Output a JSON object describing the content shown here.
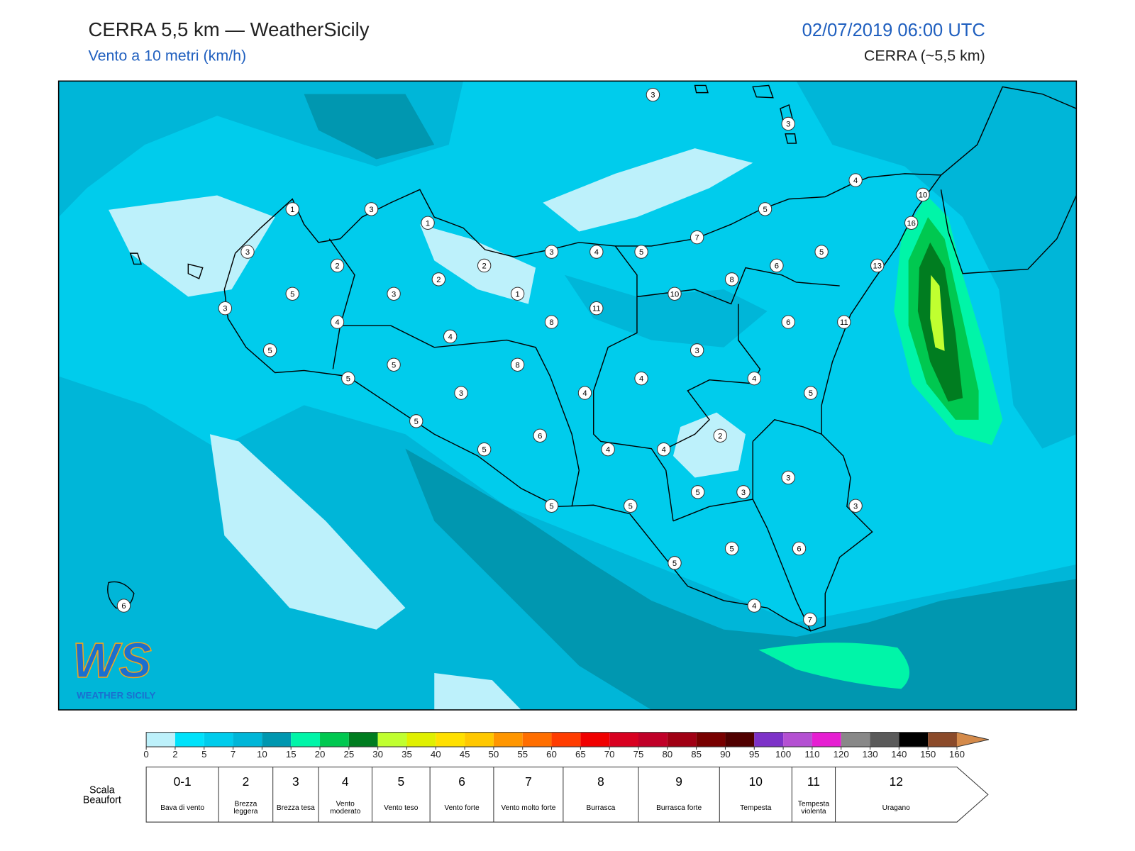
{
  "header": {
    "title": "CERRA 5,5 km — WeatherSicily",
    "subtitle": "Vento a 10 metri (km/h)",
    "datetime": "02/07/2019 06:00 UTC",
    "model": "CERRA (~5,5 km)"
  },
  "logo": {
    "mark": "WS",
    "text": "WEATHER SICILY"
  },
  "map": {
    "stations": [
      3,
      3,
      4,
      10,
      16,
      13,
      11,
      5,
      7,
      5,
      4,
      3,
      5,
      6,
      8,
      10,
      11,
      6,
      8,
      1,
      2,
      2,
      1,
      3,
      3,
      2,
      1,
      3,
      5,
      3,
      4,
      5,
      4,
      5,
      8,
      5,
      3,
      5,
      6,
      5,
      4,
      4,
      3,
      4,
      5,
      2,
      4,
      4,
      5,
      3,
      3,
      3,
      5,
      5,
      5,
      6,
      5,
      4,
      7,
      6
    ]
  },
  "colorbar": {
    "ticks": [
      0,
      2,
      5,
      7,
      10,
      15,
      20,
      25,
      30,
      35,
      40,
      45,
      50,
      55,
      60,
      65,
      70,
      75,
      80,
      85,
      90,
      95,
      100,
      110,
      120,
      130,
      140,
      150,
      160
    ],
    "colors": [
      "#bdf1fb",
      "#00e2fb",
      "#00ccec",
      "#00b6d8",
      "#0097b0",
      "#00f5a8",
      "#00c850",
      "#007d20",
      "#c0ff30",
      "#e0f000",
      "#ffe000",
      "#ffc800",
      "#ff9600",
      "#ff6e00",
      "#ff3c00",
      "#f00000",
      "#d80020",
      "#c00028",
      "#a00014",
      "#780000",
      "#500000",
      "#7d32c8",
      "#b450d2",
      "#e61ed2",
      "#888888",
      "#5a5a5a",
      "#000000",
      "#8b4a2a"
    ],
    "extend_color": "#d48a4a"
  },
  "beaufort": {
    "title": "Scala Beaufort",
    "classes": [
      {
        "number": "0-1",
        "label": "Bava di vento"
      },
      {
        "number": "2",
        "label": "Brezza leggera"
      },
      {
        "number": "3",
        "label": "Brezza tesa"
      },
      {
        "number": "4",
        "label": "Vento moderato"
      },
      {
        "number": "5",
        "label": "Vento teso"
      },
      {
        "number": "6",
        "label": "Vento forte"
      },
      {
        "number": "7",
        "label": "Vento molto forte"
      },
      {
        "number": "8",
        "label": "Burrasca"
      },
      {
        "number": "9",
        "label": "Burrasca forte"
      },
      {
        "number": "10",
        "label": "Tempesta"
      },
      {
        "number": "11",
        "label": "Tempesta violenta"
      },
      {
        "number": "12",
        "label": "Uragano"
      }
    ]
  }
}
